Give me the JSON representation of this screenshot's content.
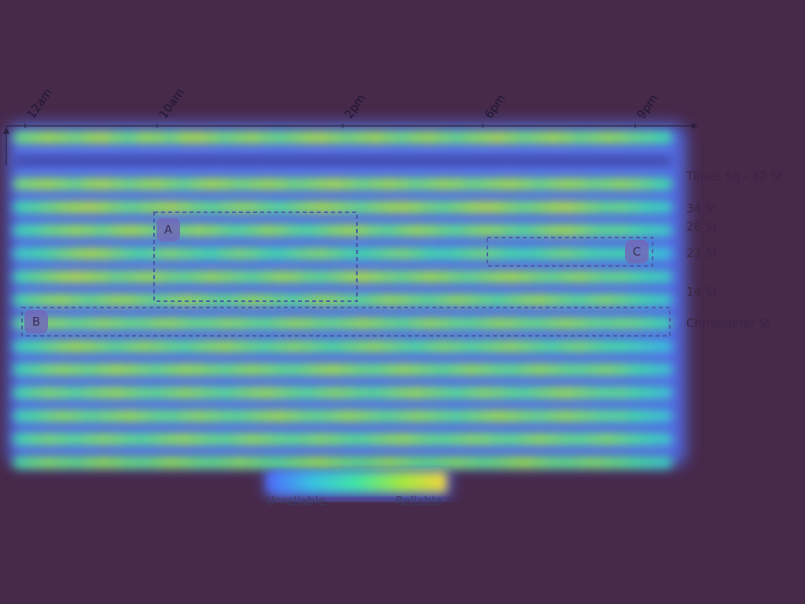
{
  "chart_data": {
    "type": "heatmap",
    "title": "",
    "x_ticks": [
      "12am",
      "10am",
      "2pm",
      "6pm",
      "9pm"
    ],
    "y_labels": [
      {
        "row": 2,
        "label": "Times Sq - 42 St"
      },
      {
        "row": 3,
        "label": "34 St"
      },
      {
        "row": 4,
        "label": "28 St"
      },
      {
        "row": 5,
        "label": "23 St"
      },
      {
        "row": 7,
        "label": "14 St"
      },
      {
        "row": 8,
        "label": "Christopher St"
      }
    ],
    "rows": 15,
    "cols": 48,
    "colorscale": {
      "min_label": "Unreliable",
      "max_label": "Reliable",
      "colors": [
        "#4f6bff",
        "#37c3e0",
        "#40e6a2",
        "#a4ea3c",
        "#f2d43c"
      ]
    },
    "annotations": [
      {
        "label": "A",
        "x_range": [
          "10am",
          "2pm"
        ],
        "rows": [
          3,
          7
        ]
      },
      {
        "label": "B",
        "x_range": [
          "12am",
          "9pm"
        ],
        "rows": [
          8,
          8
        ]
      },
      {
        "label": "C",
        "x_range": [
          "6pm",
          "9pm"
        ],
        "rows": [
          5,
          5
        ]
      }
    ],
    "values": [
      [
        0.62,
        0.68,
        0.75,
        0.7,
        0.64,
        0.73,
        0.78,
        0.66,
        0.6,
        0.72,
        0.7,
        0.63,
        0.75,
        0.79,
        0.7,
        0.62,
        0.68,
        0.73,
        0.65,
        0.6,
        0.66,
        0.74,
        0.78,
        0.7,
        0.64,
        0.7,
        0.76,
        0.68,
        0.62,
        0.7,
        0.74,
        0.66,
        0.6,
        0.67,
        0.72,
        0.79,
        0.7,
        0.63,
        0.69,
        0.75,
        0.7,
        0.62,
        0.66,
        0.72,
        0.68,
        0.6,
        0.56,
        0.5
      ],
      [
        0.1,
        0.12,
        0.15,
        0.08,
        0.05,
        0.1,
        0.14,
        0.09,
        0.06,
        0.12,
        0.16,
        0.1,
        0.05,
        0.08,
        0.12,
        0.1,
        0.06,
        0.09,
        0.14,
        0.12,
        0.08,
        0.05,
        0.1,
        0.15,
        0.12,
        0.07,
        0.1,
        0.13,
        0.09,
        0.06,
        0.11,
        0.14,
        0.1,
        0.06,
        0.09,
        0.12,
        0.15,
        0.1,
        0.07,
        0.1,
        0.13,
        0.09,
        0.06,
        0.1,
        0.12,
        0.08,
        0.05,
        0.04
      ],
      [
        0.64,
        0.7,
        0.74,
        0.68,
        0.62,
        0.72,
        0.77,
        0.69,
        0.63,
        0.7,
        0.74,
        0.66,
        0.6,
        0.69,
        0.75,
        0.71,
        0.64,
        0.68,
        0.74,
        0.7,
        0.63,
        0.66,
        0.72,
        0.77,
        0.7,
        0.63,
        0.68,
        0.74,
        0.69,
        0.62,
        0.67,
        0.73,
        0.7,
        0.63,
        0.66,
        0.72,
        0.76,
        0.69,
        0.62,
        0.68,
        0.73,
        0.7,
        0.63,
        0.66,
        0.71,
        0.66,
        0.58,
        0.5
      ],
      [
        0.48,
        0.55,
        0.62,
        0.7,
        0.76,
        0.8,
        0.74,
        0.66,
        0.6,
        0.66,
        0.72,
        0.78,
        0.7,
        0.62,
        0.58,
        0.64,
        0.7,
        0.68,
        0.6,
        0.55,
        0.62,
        0.7,
        0.76,
        0.72,
        0.65,
        0.6,
        0.67,
        0.74,
        0.78,
        0.72,
        0.64,
        0.6,
        0.66,
        0.74,
        0.8,
        0.76,
        0.68,
        0.62,
        0.68,
        0.75,
        0.8,
        0.72,
        0.64,
        0.58,
        0.6,
        0.55,
        0.46,
        0.4
      ],
      [
        0.45,
        0.52,
        0.6,
        0.66,
        0.72,
        0.68,
        0.62,
        0.7,
        0.76,
        0.7,
        0.62,
        0.58,
        0.66,
        0.72,
        0.68,
        0.6,
        0.56,
        0.62,
        0.7,
        0.66,
        0.58,
        0.54,
        0.6,
        0.68,
        0.74,
        0.7,
        0.62,
        0.58,
        0.66,
        0.73,
        0.68,
        0.61,
        0.57,
        0.64,
        0.7,
        0.67,
        0.6,
        0.56,
        0.63,
        0.7,
        0.74,
        0.68,
        0.6,
        0.56,
        0.58,
        0.52,
        0.44,
        0.38
      ],
      [
        0.4,
        0.46,
        0.54,
        0.62,
        0.7,
        0.76,
        0.72,
        0.64,
        0.56,
        0.52,
        0.6,
        0.66,
        0.6,
        0.54,
        0.5,
        0.58,
        0.64,
        0.6,
        0.52,
        0.48,
        0.56,
        0.62,
        0.66,
        0.6,
        0.52,
        0.48,
        0.54,
        0.6,
        0.64,
        0.58,
        0.5,
        0.46,
        0.52,
        0.58,
        0.62,
        0.56,
        0.5,
        0.46,
        0.52,
        0.58,
        0.62,
        0.56,
        0.5,
        0.46,
        0.48,
        0.42,
        0.36,
        0.3
      ],
      [
        0.5,
        0.58,
        0.66,
        0.74,
        0.8,
        0.76,
        0.7,
        0.62,
        0.66,
        0.72,
        0.7,
        0.64,
        0.6,
        0.66,
        0.72,
        0.68,
        0.62,
        0.58,
        0.65,
        0.72,
        0.7,
        0.62,
        0.58,
        0.64,
        0.72,
        0.78,
        0.72,
        0.66,
        0.62,
        0.68,
        0.74,
        0.7,
        0.63,
        0.6,
        0.66,
        0.72,
        0.76,
        0.7,
        0.64,
        0.6,
        0.66,
        0.7,
        0.64,
        0.58,
        0.6,
        0.54,
        0.46,
        0.4
      ],
      [
        0.52,
        0.6,
        0.68,
        0.72,
        0.66,
        0.6,
        0.66,
        0.72,
        0.7,
        0.64,
        0.6,
        0.66,
        0.72,
        0.68,
        0.62,
        0.58,
        0.64,
        0.7,
        0.66,
        0.6,
        0.56,
        0.63,
        0.7,
        0.68,
        0.61,
        0.57,
        0.64,
        0.71,
        0.68,
        0.62,
        0.58,
        0.64,
        0.7,
        0.66,
        0.6,
        0.56,
        0.62,
        0.68,
        0.72,
        0.66,
        0.6,
        0.56,
        0.62,
        0.66,
        0.6,
        0.54,
        0.46,
        0.38
      ],
      [
        0.56,
        0.62,
        0.68,
        0.66,
        0.6,
        0.64,
        0.7,
        0.66,
        0.6,
        0.62,
        0.68,
        0.7,
        0.64,
        0.6,
        0.62,
        0.68,
        0.66,
        0.6,
        0.58,
        0.64,
        0.7,
        0.68,
        0.62,
        0.6,
        0.66,
        0.72,
        0.68,
        0.62,
        0.58,
        0.64,
        0.7,
        0.66,
        0.6,
        0.58,
        0.64,
        0.7,
        0.68,
        0.62,
        0.6,
        0.66,
        0.7,
        0.66,
        0.6,
        0.58,
        0.62,
        0.6,
        0.54,
        0.48
      ],
      [
        0.44,
        0.52,
        0.6,
        0.68,
        0.74,
        0.7,
        0.64,
        0.58,
        0.64,
        0.7,
        0.66,
        0.6,
        0.56,
        0.62,
        0.68,
        0.72,
        0.66,
        0.6,
        0.56,
        0.62,
        0.68,
        0.64,
        0.58,
        0.54,
        0.6,
        0.66,
        0.7,
        0.64,
        0.58,
        0.54,
        0.6,
        0.66,
        0.62,
        0.56,
        0.6,
        0.66,
        0.7,
        0.64,
        0.58,
        0.54,
        0.6,
        0.64,
        0.58,
        0.52,
        0.5,
        0.44,
        0.36,
        0.3
      ],
      [
        0.48,
        0.56,
        0.64,
        0.7,
        0.66,
        0.62,
        0.68,
        0.74,
        0.7,
        0.64,
        0.6,
        0.66,
        0.72,
        0.7,
        0.64,
        0.6,
        0.66,
        0.7,
        0.66,
        0.6,
        0.58,
        0.64,
        0.7,
        0.74,
        0.68,
        0.62,
        0.6,
        0.66,
        0.72,
        0.68,
        0.62,
        0.58,
        0.64,
        0.7,
        0.66,
        0.6,
        0.58,
        0.64,
        0.7,
        0.66,
        0.6,
        0.58,
        0.62,
        0.66,
        0.6,
        0.52,
        0.44,
        0.36
      ],
      [
        0.5,
        0.58,
        0.66,
        0.62,
        0.56,
        0.62,
        0.68,
        0.72,
        0.66,
        0.6,
        0.58,
        0.64,
        0.7,
        0.66,
        0.6,
        0.56,
        0.62,
        0.68,
        0.72,
        0.66,
        0.6,
        0.56,
        0.62,
        0.68,
        0.64,
        0.58,
        0.56,
        0.62,
        0.68,
        0.72,
        0.66,
        0.6,
        0.56,
        0.62,
        0.68,
        0.64,
        0.58,
        0.56,
        0.62,
        0.68,
        0.72,
        0.66,
        0.6,
        0.56,
        0.58,
        0.52,
        0.44,
        0.36
      ],
      [
        0.46,
        0.54,
        0.62,
        0.68,
        0.64,
        0.58,
        0.62,
        0.68,
        0.72,
        0.66,
        0.6,
        0.58,
        0.64,
        0.7,
        0.66,
        0.6,
        0.58,
        0.64,
        0.7,
        0.74,
        0.68,
        0.62,
        0.6,
        0.66,
        0.72,
        0.68,
        0.62,
        0.58,
        0.64,
        0.7,
        0.66,
        0.6,
        0.56,
        0.62,
        0.68,
        0.74,
        0.7,
        0.64,
        0.6,
        0.66,
        0.7,
        0.66,
        0.6,
        0.56,
        0.56,
        0.5,
        0.42,
        0.34
      ],
      [
        0.5,
        0.58,
        0.64,
        0.6,
        0.56,
        0.62,
        0.68,
        0.64,
        0.58,
        0.56,
        0.62,
        0.68,
        0.72,
        0.66,
        0.6,
        0.58,
        0.64,
        0.7,
        0.66,
        0.6,
        0.58,
        0.62,
        0.68,
        0.64,
        0.58,
        0.56,
        0.62,
        0.68,
        0.72,
        0.66,
        0.6,
        0.58,
        0.62,
        0.68,
        0.66,
        0.6,
        0.58,
        0.64,
        0.7,
        0.66,
        0.6,
        0.58,
        0.62,
        0.66,
        0.6,
        0.54,
        0.46,
        0.38
      ],
      [
        0.52,
        0.6,
        0.66,
        0.62,
        0.58,
        0.64,
        0.7,
        0.66,
        0.6,
        0.58,
        0.64,
        0.7,
        0.66,
        0.6,
        0.58,
        0.62,
        0.68,
        0.64,
        0.58,
        0.56,
        0.62,
        0.68,
        0.72,
        0.66,
        0.6,
        0.58,
        0.64,
        0.7,
        0.66,
        0.6,
        0.58,
        0.62,
        0.66,
        0.62,
        0.58,
        0.62,
        0.68,
        0.72,
        0.66,
        0.6,
        0.58,
        0.62,
        0.66,
        0.62,
        0.58,
        0.52,
        0.46,
        0.4
      ]
    ]
  }
}
